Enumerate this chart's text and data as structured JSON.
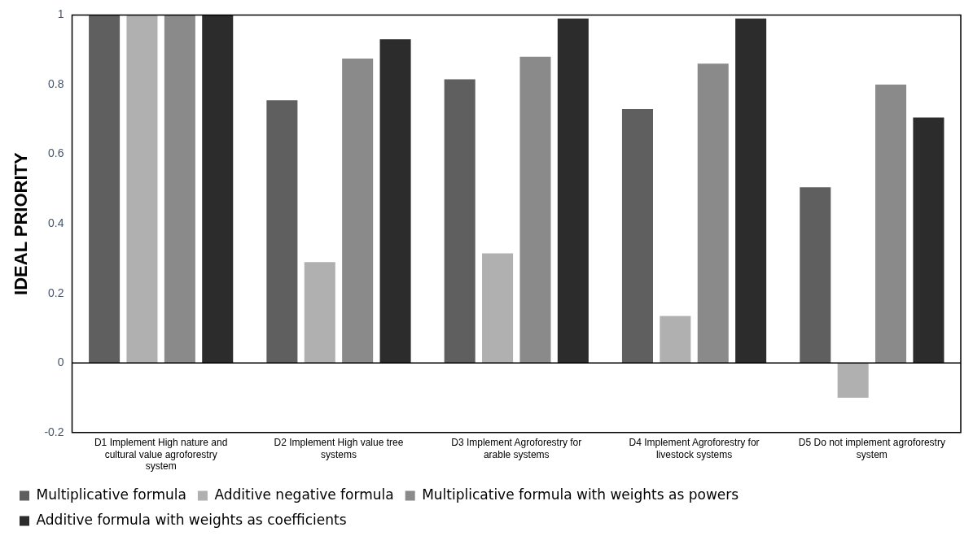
{
  "chart_data": {
    "type": "bar",
    "ylabel": "IDEAL PRIORITY",
    "categories": [
      "D1 Implement High nature and cultural value agroforestry system",
      "D2 Implement High value tree systems",
      "D3 Implement Agroforestry for arable systems",
      "D4 Implement Agroforestry for livestock systems",
      "D5 Do not implement agroforestry system"
    ],
    "series": [
      {
        "name": "Multiplicative formula",
        "color": "#5f5f5f",
        "values": [
          1,
          0.755,
          0.815,
          0.73,
          0.505
        ]
      },
      {
        "name": "Additive negative formula",
        "color": "#b0b0b0",
        "values": [
          1,
          0.29,
          0.315,
          0.135,
          -0.1
        ]
      },
      {
        "name": "Multiplicative formula with weights as powers",
        "color": "#8a8a8a",
        "values": [
          1,
          0.875,
          0.88,
          0.86,
          0.8
        ]
      },
      {
        "name": "Additive formula with weights as coefficients",
        "color": "#2c2c2c",
        "values": [
          1,
          0.93,
          0.99,
          0.99,
          0.705
        ]
      }
    ],
    "ylim": [
      -0.2,
      1
    ],
    "yticks": [
      -0.2,
      0,
      0.2,
      0.4,
      0.6,
      0.8,
      1
    ],
    "legend": "bottom"
  }
}
